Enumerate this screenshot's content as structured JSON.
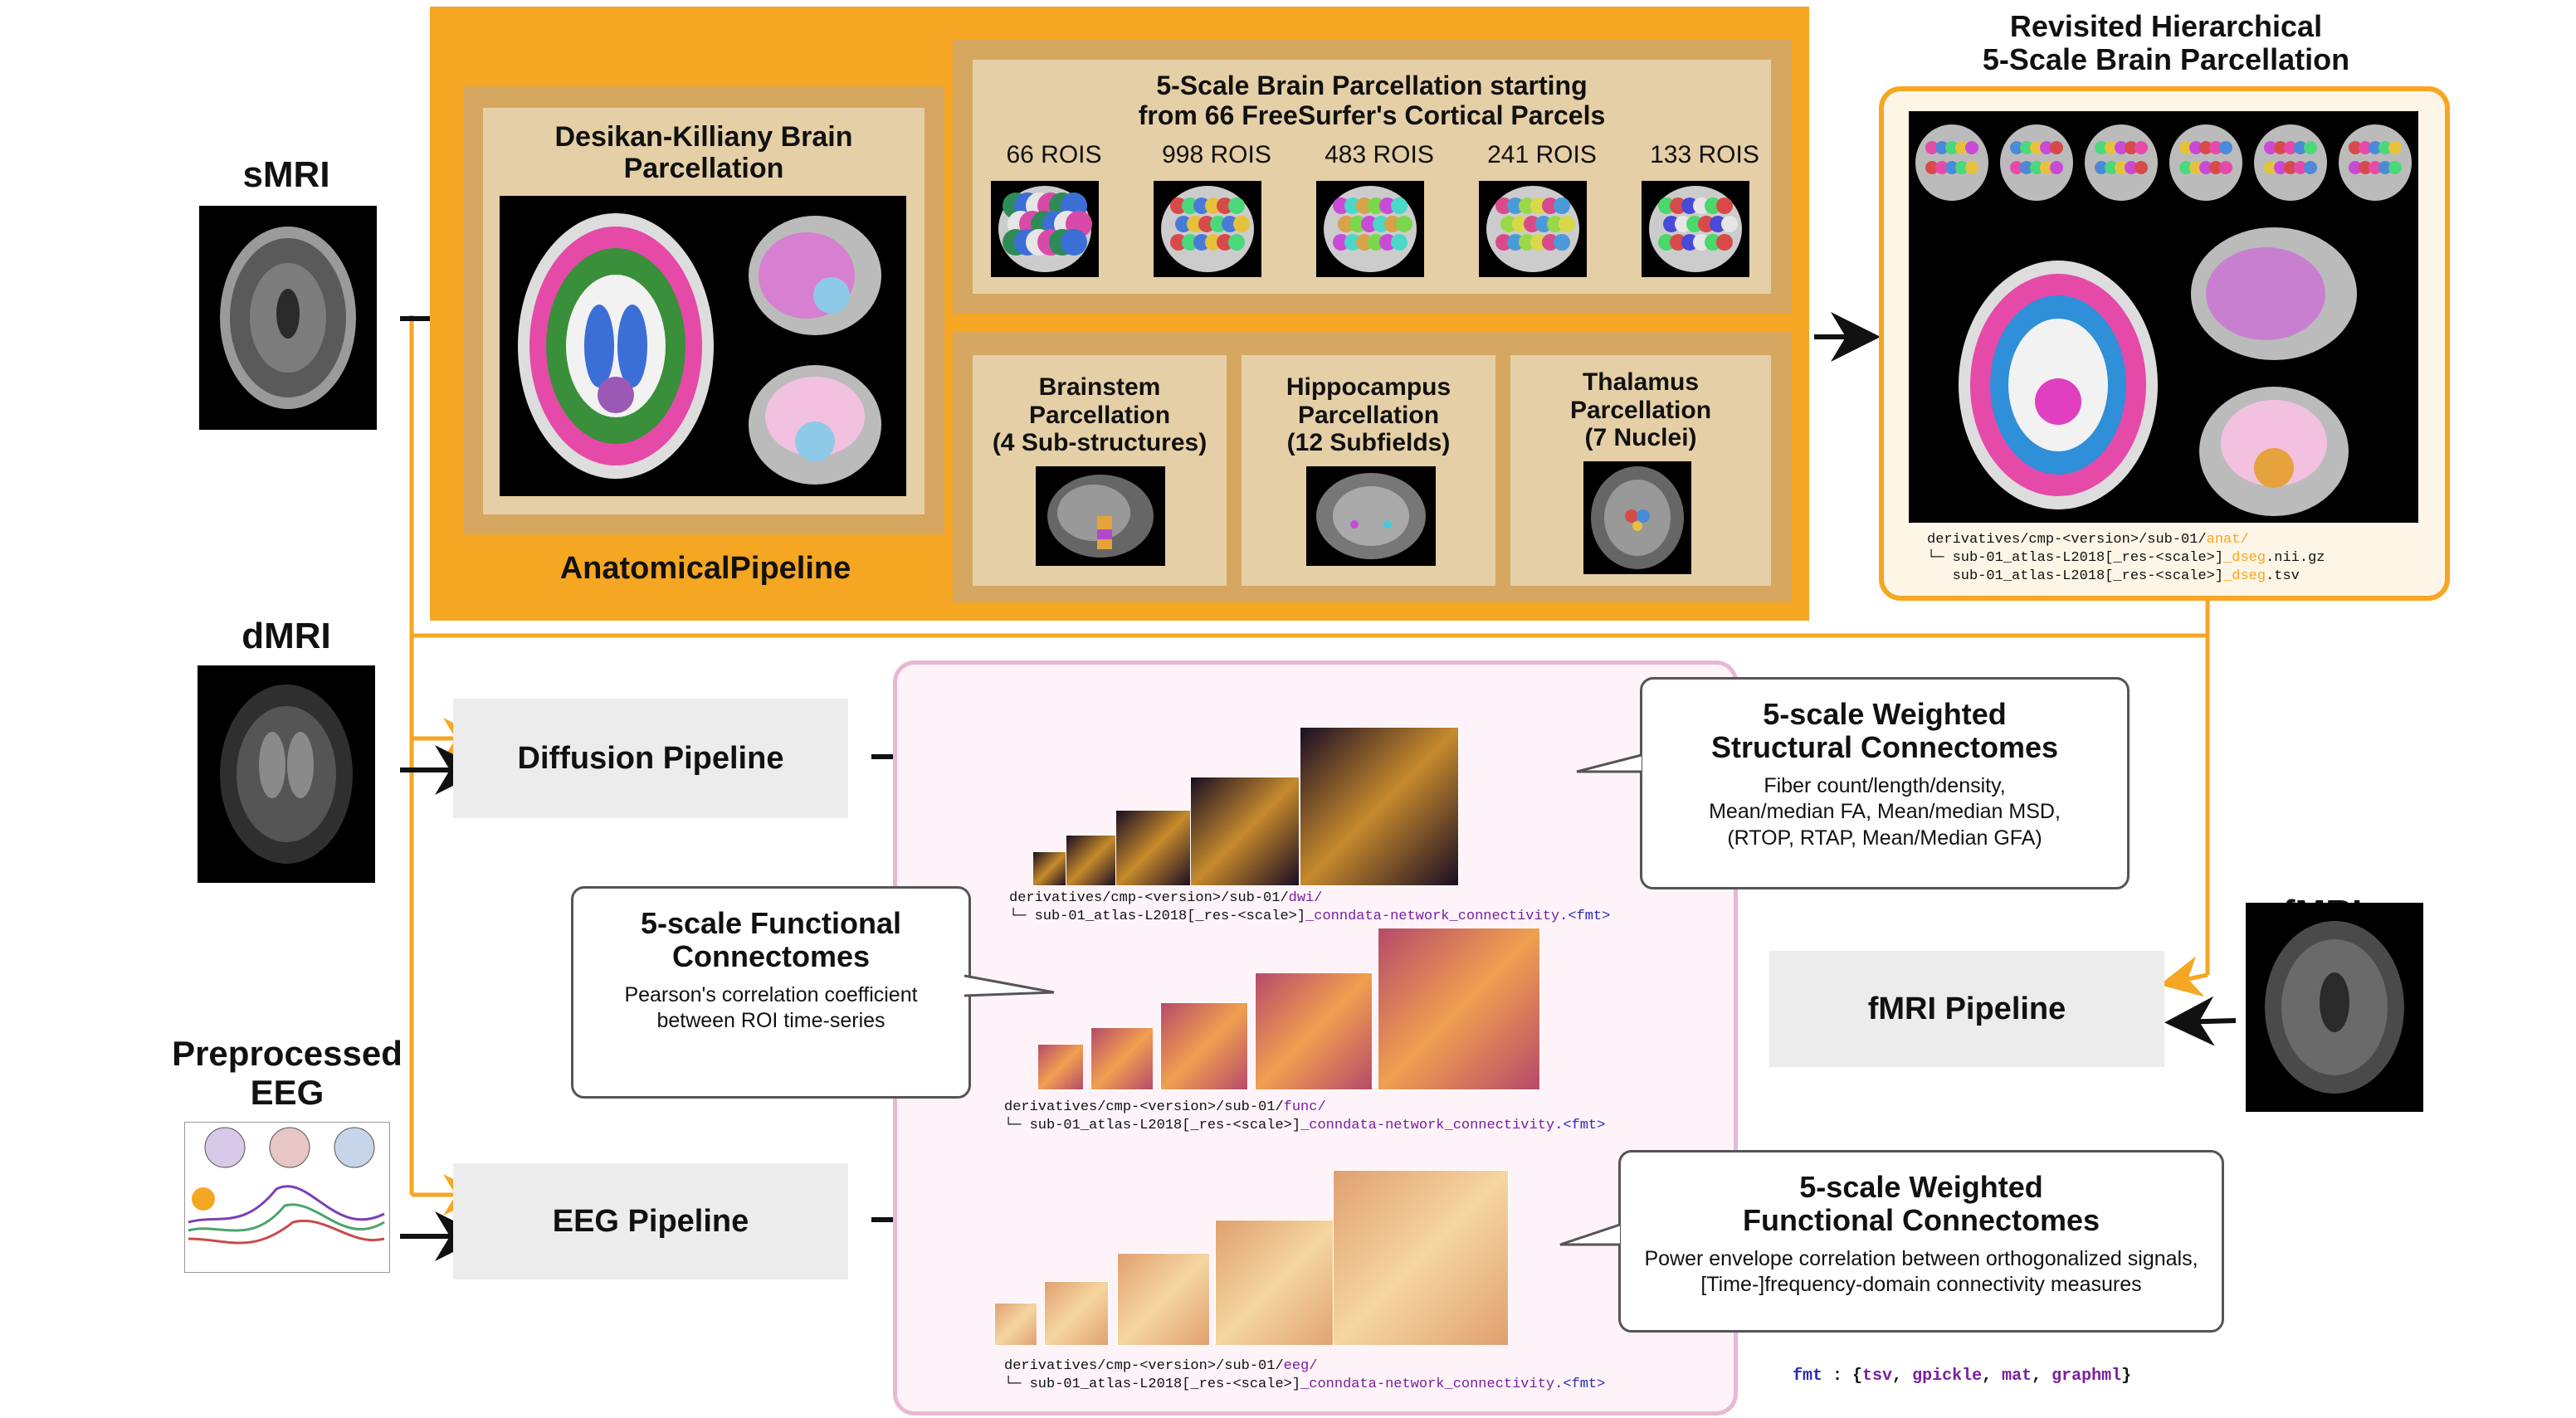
{
  "inputs": {
    "smri": "sMRI",
    "dmri": "dMRI",
    "rfmri": "rfMRI",
    "eeg": "Preprocessed\nEEG"
  },
  "anatomical": {
    "section_title": "AnatomicalPipeline",
    "desikan_title": "Desikan-Killiany Brain\nParcellation",
    "scale_title": "5-Scale Brain Parcellation starting\nfrom 66 FreeSurfer's Cortical Parcels",
    "rois": [
      "66 ROIS",
      "998 ROIS",
      "483 ROIS",
      "241 ROIS",
      "133 ROIS"
    ],
    "brainstem": "Brainstem\nParcellation\n(4 Sub-structures)",
    "hippocampus": "Hippocampus\nParcellation\n(12 Subfields)",
    "thalamus": "Thalamus\nParcellation\n(7 Nuclei)"
  },
  "revisited": {
    "title": "Revisited Hierarchical\n5-Scale Brain Parcellation",
    "path_prefix": "derivatives/cmp-<version>/sub-01/",
    "path_dir": "anat/",
    "file1_a": "└─ sub-01_atlas-L2018[_res-<scale>]",
    "file1_b": "_dseg",
    "file1_c": ".nii.gz",
    "file2_a": "   sub-01_atlas-L2018[_res-<scale>]",
    "file2_b": "_dseg",
    "file2_c": ".tsv"
  },
  "pipelines": {
    "diffusion": "Diffusion Pipeline",
    "fmri": "fMRI Pipeline",
    "eeg": "EEG Pipeline"
  },
  "outputs": {
    "prefix": "derivatives/cmp-<version>/sub-01/",
    "dwi_dir": "dwi/",
    "func_dir": "func/",
    "eeg_dir": "eeg/",
    "file_a": "└─ sub-01_atlas-L2018[_res-<scale>]",
    "file_b": "_conndata-network_connectivity",
    "file_c": ".<fmt>"
  },
  "callouts": {
    "structural_title": "5-scale Weighted\nStructural Connectomes",
    "structural_body": "Fiber count/length/density,\nMean/median FA, Mean/median MSD,\n(RTOP, RTAP, Mean/Median GFA)",
    "functional_title": "5-scale Functional\nConnectomes",
    "functional_body": "Pearson's correlation coefficient\nbetween ROI time-series",
    "weighted_func_title": "5-scale Weighted\nFunctional Connectomes",
    "weighted_func_body": "Power envelope correlation between orthogonalized signals,\n[Time-]frequency-domain connectivity measures"
  },
  "fmt": {
    "key": "fmt",
    "sep": " : {",
    "v1": "tsv",
    "v2": "gpickle",
    "v3": "mat",
    "v4": "graphml",
    "close": "}"
  },
  "colors": {
    "orange": "#f5a623",
    "tan_outer": "#d6a761",
    "tan_inner": "#e5cfa6",
    "grey_box": "#ececec",
    "pink_panel": "#fdf3f8",
    "pink_border": "#e8b8d2"
  }
}
